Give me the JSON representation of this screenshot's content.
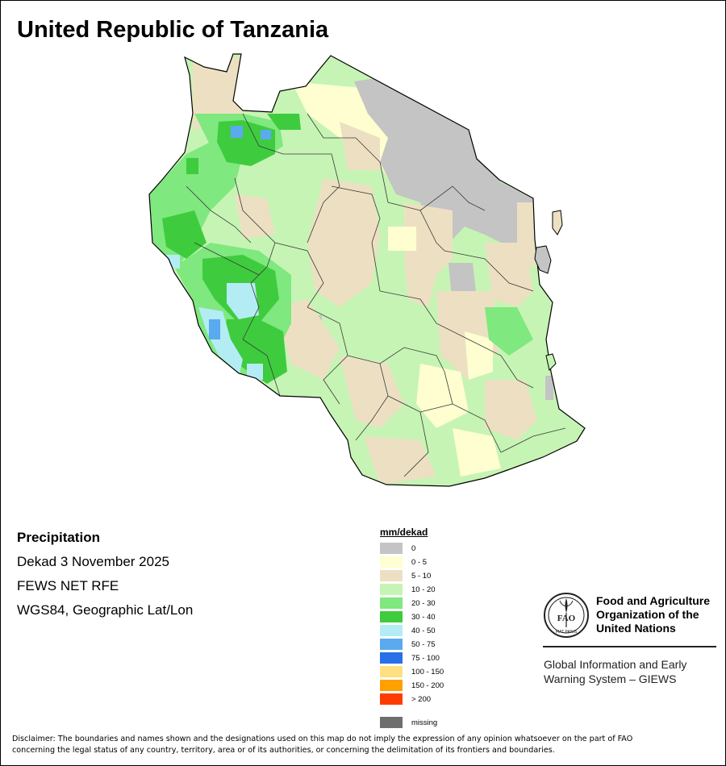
{
  "title": "United Republic of Tanzania",
  "info": {
    "variable": "Precipitation",
    "period": "Dekad 3 November 2025",
    "source": "FEWS NET RFE",
    "projection": "WGS84, Geographic Lat/Lon"
  },
  "legend": {
    "title": "mm/dekad",
    "items": [
      {
        "label": "0",
        "color": "#c4c4c4"
      },
      {
        "label": "0 - 5",
        "color": "#fefed0"
      },
      {
        "label": "5 - 10",
        "color": "#ede0c2"
      },
      {
        "label": "10 - 20",
        "color": "#c6f4b4"
      },
      {
        "label": "20 - 30",
        "color": "#7fe87f"
      },
      {
        "label": "30 - 40",
        "color": "#3ecc3e"
      },
      {
        "label": "40 - 50",
        "color": "#b4ecf4"
      },
      {
        "label": "50 - 75",
        "color": "#5aaaf0"
      },
      {
        "label": "75 - 100",
        "color": "#2870e8"
      },
      {
        "label": "100 - 150",
        "color": "#ffe080"
      },
      {
        "label": "150 - 200",
        "color": "#ffa000"
      },
      {
        "label": "> 200",
        "color": "#ff3c00"
      }
    ],
    "missing": {
      "label": "missing",
      "color": "#6e6e6e"
    }
  },
  "organization": {
    "logo_text": "FAO",
    "logo_motto": "FIAT PANIS",
    "name_lines": [
      "Food and Agriculture",
      "Organization of the",
      "United Nations"
    ],
    "system_lines": [
      "Global Information and Early",
      "Warning System – GIEWS"
    ]
  },
  "disclaimer_lines": [
    "Disclaimer: The boundaries and names shown and the designations used on this map do not imply the expression of any opinion whatsoever on the part of FAO",
    "concerning the legal status of any country, territory, area or of its authorities, or concerning the delimitation of its frontiers and boundaries."
  ]
}
